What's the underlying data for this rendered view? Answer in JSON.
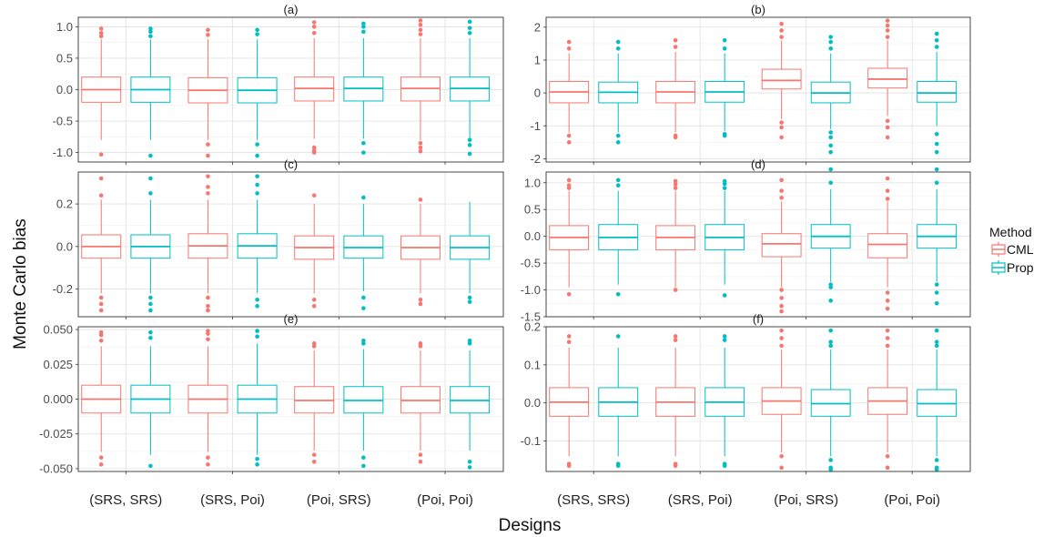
{
  "ylabel": "Monte Carlo bias",
  "xlabel": "Designs",
  "legend": {
    "title": "Method",
    "items": [
      {
        "label": "CML",
        "color": "#F8766D"
      },
      {
        "label": "Prop",
        "color": "#00BFC4"
      }
    ]
  },
  "chart_data": [
    {
      "type": "box",
      "title": "(a)",
      "categories": [
        "(SRS, SRS)",
        "(SRS, Poi)",
        "(Poi, SRS)",
        "(Poi, Poi)"
      ],
      "ylim": [
        -1.15,
        1.15
      ],
      "yticks": [
        -1.0,
        -0.5,
        0.0,
        0.5,
        1.0
      ],
      "yticklabels": [
        "-1.0",
        "-0.5",
        "0.0",
        "0.5",
        "1.0"
      ],
      "series": [
        {
          "name": "CML",
          "boxes": [
            {
              "q1": -0.2,
              "median": 0.0,
              "q3": 0.2,
              "lower": -0.8,
              "upper": 0.8,
              "outliers": [
                0.85,
                0.9,
                0.97,
                -1.03
              ]
            },
            {
              "q1": -0.21,
              "median": -0.01,
              "q3": 0.19,
              "lower": -0.8,
              "upper": 0.8,
              "outliers": [
                0.87,
                0.95,
                -0.87,
                -1.05
              ]
            },
            {
              "q1": -0.18,
              "median": 0.02,
              "q3": 0.2,
              "lower": -0.78,
              "upper": 0.82,
              "outliers": [
                0.9,
                1.0,
                1.07,
                -0.92,
                -0.97,
                -1.0
              ]
            },
            {
              "q1": -0.18,
              "median": 0.02,
              "q3": 0.2,
              "lower": -0.8,
              "upper": 0.82,
              "outliers": [
                0.88,
                0.95,
                1.03,
                1.1,
                -0.85,
                -0.92,
                -0.98
              ]
            }
          ]
        },
        {
          "name": "Prop",
          "boxes": [
            {
              "q1": -0.2,
              "median": 0.0,
              "q3": 0.2,
              "lower": -0.8,
              "upper": 0.8,
              "outliers": [
                0.85,
                0.92,
                0.97,
                -1.05
              ]
            },
            {
              "q1": -0.21,
              "median": -0.01,
              "q3": 0.19,
              "lower": -0.8,
              "upper": 0.8,
              "outliers": [
                0.88,
                0.95,
                -0.87,
                -1.05
              ]
            },
            {
              "q1": -0.18,
              "median": 0.02,
              "q3": 0.2,
              "lower": -0.78,
              "upper": 0.82,
              "outliers": [
                0.92,
                1.0,
                1.05,
                -0.85,
                -1.0
              ]
            },
            {
              "q1": -0.18,
              "median": 0.02,
              "q3": 0.2,
              "lower": -0.8,
              "upper": 0.82,
              "outliers": [
                0.9,
                0.98,
                1.08,
                -0.8,
                -0.88,
                -1.02
              ]
            }
          ]
        }
      ]
    },
    {
      "type": "box",
      "title": "(b)",
      "categories": [
        "(SRS, SRS)",
        "(SRS, Poi)",
        "(Poi, SRS)",
        "(Poi, Poi)"
      ],
      "ylim": [
        -2.1,
        2.3
      ],
      "yticks": [
        -2,
        -1,
        0,
        1,
        2
      ],
      "yticklabels": [
        "-2",
        "-1",
        "0",
        "1",
        "2"
      ],
      "series": [
        {
          "name": "CML",
          "boxes": [
            {
              "q1": -0.3,
              "median": 0.03,
              "q3": 0.35,
              "lower": -1.2,
              "upper": 1.2,
              "outliers": [
                1.35,
                1.55,
                -1.3,
                -1.5
              ]
            },
            {
              "q1": -0.3,
              "median": 0.03,
              "q3": 0.35,
              "lower": -1.2,
              "upper": 1.25,
              "outliers": [
                1.4,
                1.6,
                -1.3,
                -1.35
              ]
            },
            {
              "q1": 0.12,
              "median": 0.38,
              "q3": 0.72,
              "lower": -0.8,
              "upper": 1.6,
              "outliers": [
                1.7,
                1.9,
                2.1,
                -0.9,
                -1.05,
                -1.35
              ]
            },
            {
              "q1": 0.15,
              "median": 0.42,
              "q3": 0.75,
              "lower": -0.7,
              "upper": 1.6,
              "outliers": [
                1.7,
                1.9,
                2.05,
                2.2,
                -0.85,
                -1.05,
                -1.35
              ]
            }
          ]
        },
        {
          "name": "Prop",
          "boxes": [
            {
              "q1": -0.3,
              "median": 0.02,
              "q3": 0.33,
              "lower": -1.2,
              "upper": 1.2,
              "outliers": [
                1.35,
                1.55,
                -1.3,
                -1.5
              ]
            },
            {
              "q1": -0.28,
              "median": 0.03,
              "q3": 0.35,
              "lower": -1.15,
              "upper": 1.2,
              "outliers": [
                1.35,
                1.6,
                -1.25,
                -1.3
              ]
            },
            {
              "q1": -0.3,
              "median": 0.0,
              "q3": 0.33,
              "lower": -1.1,
              "upper": 1.2,
              "outliers": [
                1.35,
                1.55,
                1.7,
                -1.2,
                -1.35,
                -1.6,
                -1.8
              ]
            },
            {
              "q1": -0.28,
              "median": 0.0,
              "q3": 0.35,
              "lower": -1.0,
              "upper": 1.25,
              "outliers": [
                1.4,
                1.6,
                1.8,
                -1.25,
                -1.55,
                -1.8
              ]
            }
          ]
        }
      ]
    },
    {
      "type": "box",
      "title": "(c)",
      "categories": [
        "(SRS, SRS)",
        "(SRS, Poi)",
        "(Poi, SRS)",
        "(Poi, Poi)"
      ],
      "ylim": [
        -0.33,
        0.35
      ],
      "yticks": [
        -0.2,
        0.0,
        0.2
      ],
      "yticklabels": [
        "-0.2",
        "0.0",
        "0.2"
      ],
      "series": [
        {
          "name": "CML",
          "boxes": [
            {
              "q1": -0.055,
              "median": 0.0,
              "q3": 0.055,
              "lower": -0.22,
              "upper": 0.22,
              "outliers": [
                0.24,
                0.32,
                -0.24,
                -0.27,
                -0.3
              ]
            },
            {
              "q1": -0.055,
              "median": 0.003,
              "q3": 0.06,
              "lower": -0.22,
              "upper": 0.22,
              "outliers": [
                0.25,
                0.28,
                0.33,
                -0.24,
                -0.28,
                -0.3
              ]
            },
            {
              "q1": -0.06,
              "median": -0.005,
              "q3": 0.05,
              "lower": -0.22,
              "upper": 0.2,
              "outliers": [
                0.24,
                -0.25,
                -0.28
              ]
            },
            {
              "q1": -0.06,
              "median": -0.005,
              "q3": 0.05,
              "lower": -0.22,
              "upper": 0.2,
              "outliers": [
                0.22,
                -0.25,
                -0.27
              ]
            }
          ]
        },
        {
          "name": "Prop",
          "boxes": [
            {
              "q1": -0.055,
              "median": 0.0,
              "q3": 0.055,
              "lower": -0.22,
              "upper": 0.22,
              "outliers": [
                0.25,
                0.32,
                -0.24,
                -0.27,
                -0.3
              ]
            },
            {
              "q1": -0.055,
              "median": 0.003,
              "q3": 0.06,
              "lower": -0.22,
              "upper": 0.22,
              "outliers": [
                0.25,
                0.29,
                0.33,
                -0.25,
                -0.28
              ]
            },
            {
              "q1": -0.055,
              "median": -0.005,
              "q3": 0.05,
              "lower": -0.21,
              "upper": 0.2,
              "outliers": [
                0.23,
                -0.24,
                -0.29
              ]
            },
            {
              "q1": -0.06,
              "median": -0.005,
              "q3": 0.05,
              "lower": -0.22,
              "upper": 0.21,
              "outliers": [
                -0.24,
                -0.26
              ]
            }
          ]
        }
      ]
    },
    {
      "type": "box",
      "title": "(d)",
      "categories": [
        "(SRS, SRS)",
        "(SRS, Poi)",
        "(Poi, SRS)",
        "(Poi, Poi)"
      ],
      "ylim": [
        -1.5,
        1.2
      ],
      "yticks": [
        -1.5,
        -1.0,
        -0.5,
        0.0,
        0.5,
        1.0
      ],
      "yticklabels": [
        "-1.5",
        "-1.0",
        "-0.5",
        "0.0",
        "0.5",
        "1.0"
      ],
      "series": [
        {
          "name": "CML",
          "boxes": [
            {
              "q1": -0.25,
              "median": -0.02,
              "q3": 0.2,
              "lower": -0.95,
              "upper": 0.85,
              "outliers": [
                0.9,
                0.95,
                1.05,
                -1.08
              ]
            },
            {
              "q1": -0.25,
              "median": -0.02,
              "q3": 0.2,
              "lower": -0.95,
              "upper": 0.85,
              "outliers": [
                0.9,
                0.97,
                1.03,
                -1.0
              ]
            },
            {
              "q1": -0.38,
              "median": -0.14,
              "q3": 0.05,
              "lower": -0.95,
              "upper": 0.65,
              "outliers": [
                0.72,
                0.85,
                1.05,
                -1.0,
                -1.15,
                -1.3,
                -1.4
              ]
            },
            {
              "q1": -0.4,
              "median": -0.15,
              "q3": 0.05,
              "lower": -0.95,
              "upper": 0.65,
              "outliers": [
                0.7,
                0.85,
                1.08,
                -1.05,
                -1.2,
                -1.35
              ]
            }
          ]
        },
        {
          "name": "Prop",
          "boxes": [
            {
              "q1": -0.25,
              "median": -0.02,
              "q3": 0.22,
              "lower": -0.9,
              "upper": 0.85,
              "outliers": [
                0.95,
                1.05,
                -1.08
              ]
            },
            {
              "q1": -0.25,
              "median": -0.02,
              "q3": 0.22,
              "lower": -0.9,
              "upper": 0.85,
              "outliers": [
                0.9,
                0.98,
                1.03,
                -1.1
              ]
            },
            {
              "q1": -0.22,
              "median": 0.0,
              "q3": 0.22,
              "lower": -0.85,
              "upper": 0.88,
              "outliers": [
                1.0,
                1.25,
                -0.9,
                -0.95,
                -1.2
              ]
            },
            {
              "q1": -0.22,
              "median": 0.0,
              "q3": 0.22,
              "lower": -0.85,
              "upper": 0.88,
              "outliers": [
                1.0,
                1.25,
                -0.9,
                -1.05,
                -1.25
              ]
            }
          ]
        }
      ]
    },
    {
      "type": "box",
      "title": "(e)",
      "categories": [
        "(SRS, SRS)",
        "(SRS, Poi)",
        "(Poi, SRS)",
        "(Poi, Poi)"
      ],
      "ylim": [
        -0.052,
        0.052
      ],
      "yticks": [
        -0.05,
        -0.025,
        0.0,
        0.025,
        0.05
      ],
      "yticklabels": [
        "-0.050",
        "-0.025",
        "0.000",
        "0.025",
        "0.050"
      ],
      "series": [
        {
          "name": "CML",
          "boxes": [
            {
              "q1": -0.01,
              "median": 0.0,
              "q3": 0.01,
              "lower": -0.038,
              "upper": 0.038,
              "outliers": [
                0.042,
                0.046,
                0.048,
                -0.042,
                -0.047
              ]
            },
            {
              "q1": -0.01,
              "median": 0.0,
              "q3": 0.01,
              "lower": -0.038,
              "upper": 0.038,
              "outliers": [
                0.043,
                0.047,
                0.049,
                -0.042,
                -0.047
              ]
            },
            {
              "q1": -0.01,
              "median": -0.001,
              "q3": 0.009,
              "lower": -0.037,
              "upper": 0.035,
              "outliers": [
                0.038,
                0.04,
                -0.04,
                -0.045
              ]
            },
            {
              "q1": -0.01,
              "median": -0.001,
              "q3": 0.009,
              "lower": -0.037,
              "upper": 0.035,
              "outliers": [
                0.038,
                0.04,
                -0.04,
                -0.045
              ]
            }
          ]
        },
        {
          "name": "Prop",
          "boxes": [
            {
              "q1": -0.01,
              "median": 0.0,
              "q3": 0.01,
              "lower": -0.04,
              "upper": 0.038,
              "outliers": [
                0.044,
                0.048,
                -0.048
              ]
            },
            {
              "q1": -0.01,
              "median": 0.0,
              "q3": 0.01,
              "lower": -0.04,
              "upper": 0.04,
              "outliers": [
                0.045,
                0.049,
                -0.043,
                -0.047
              ]
            },
            {
              "q1": -0.01,
              "median": -0.001,
              "q3": 0.009,
              "lower": -0.037,
              "upper": 0.036,
              "outliers": [
                0.04,
                0.042,
                -0.042,
                -0.048
              ]
            },
            {
              "q1": -0.01,
              "median": -0.001,
              "q3": 0.009,
              "lower": -0.037,
              "upper": 0.035,
              "outliers": [
                0.04,
                0.042,
                -0.045,
                -0.049
              ]
            }
          ]
        }
      ]
    },
    {
      "type": "box",
      "title": "(f)",
      "categories": [
        "(SRS, SRS)",
        "(SRS, Poi)",
        "(Poi, SRS)",
        "(Poi, Poi)"
      ],
      "ylim": [
        -0.18,
        0.2
      ],
      "yticks": [
        -0.1,
        0.0,
        0.1,
        0.2
      ],
      "yticklabels": [
        "-0.1",
        "0.0",
        "0.1",
        "0.2"
      ],
      "series": [
        {
          "name": "CML",
          "boxes": [
            {
              "q1": -0.035,
              "median": 0.002,
              "q3": 0.04,
              "lower": -0.14,
              "upper": 0.145,
              "outliers": [
                0.16,
                0.175,
                -0.16,
                -0.165
              ]
            },
            {
              "q1": -0.035,
              "median": 0.002,
              "q3": 0.04,
              "lower": -0.14,
              "upper": 0.145,
              "outliers": [
                0.165,
                0.175,
                -0.16,
                -0.165
              ]
            },
            {
              "q1": -0.03,
              "median": 0.005,
              "q3": 0.04,
              "lower": -0.13,
              "upper": 0.14,
              "outliers": [
                0.15,
                0.17,
                0.19,
                -0.14,
                -0.17
              ]
            },
            {
              "q1": -0.03,
              "median": 0.005,
              "q3": 0.04,
              "lower": -0.13,
              "upper": 0.14,
              "outliers": [
                0.15,
                0.17,
                0.19,
                -0.14,
                -0.17
              ]
            }
          ]
        },
        {
          "name": "Prop",
          "boxes": [
            {
              "q1": -0.035,
              "median": 0.002,
              "q3": 0.04,
              "lower": -0.14,
              "upper": 0.145,
              "outliers": [
                0.175,
                -0.16,
                -0.165
              ]
            },
            {
              "q1": -0.035,
              "median": 0.002,
              "q3": 0.04,
              "lower": -0.14,
              "upper": 0.145,
              "outliers": [
                0.165,
                0.175,
                -0.16,
                -0.165
              ]
            },
            {
              "q1": -0.035,
              "median": -0.002,
              "q3": 0.035,
              "lower": -0.14,
              "upper": 0.14,
              "outliers": [
                0.15,
                0.16,
                0.19,
                -0.15,
                -0.17,
                -0.175
              ]
            },
            {
              "q1": -0.035,
              "median": -0.002,
              "q3": 0.035,
              "lower": -0.14,
              "upper": 0.14,
              "outliers": [
                0.15,
                0.16,
                0.19,
                -0.15,
                -0.17,
                -0.175
              ]
            }
          ]
        }
      ]
    }
  ]
}
